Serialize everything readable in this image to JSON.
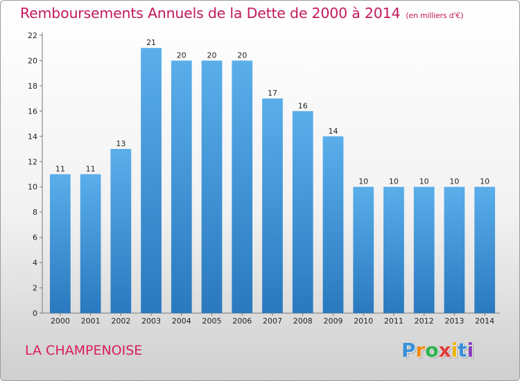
{
  "header": {
    "title": "Remboursements Annuels de la Dette de 2000 à 2014",
    "unit": "(en milliers d'€)"
  },
  "footer": {
    "place": "LA CHAMPENOISE",
    "logo": [
      "P",
      "r",
      "o",
      "x",
      "i",
      "t",
      "i"
    ],
    "logo_colors": [
      "#3a8fd8",
      "#f08a10",
      "#2bb24c",
      "#e23c3c",
      "#f0b400",
      "#3a8fd8",
      "#8a3cc0"
    ]
  },
  "chart_data": {
    "type": "bar",
    "categories": [
      "2000",
      "2001",
      "2002",
      "2003",
      "2004",
      "2005",
      "2006",
      "2007",
      "2008",
      "2009",
      "2010",
      "2011",
      "2012",
      "2013",
      "2014"
    ],
    "values": [
      11,
      11,
      13,
      21,
      20,
      20,
      20,
      17,
      16,
      14,
      10,
      10,
      10,
      10,
      10
    ],
    "data_labels": [
      "11",
      "11",
      "13",
      "21",
      "20",
      "20",
      "20",
      "17",
      "16",
      "14",
      "10",
      "10",
      "10",
      "10",
      "10"
    ],
    "title": "Remboursements Annuels de la Dette de 2000 à 2014",
    "ylim": [
      0,
      22
    ],
    "yticks": [
      0,
      2,
      4,
      6,
      8,
      10,
      12,
      14,
      16,
      18,
      20,
      22
    ],
    "grid": false,
    "bar_color": "#4ea6e6"
  }
}
